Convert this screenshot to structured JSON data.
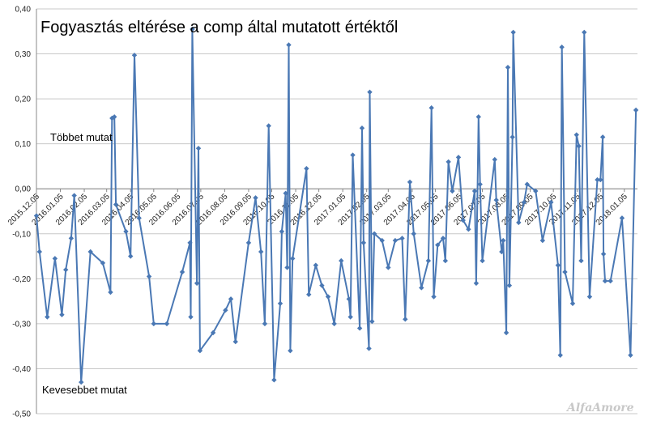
{
  "chart_data": {
    "type": "line",
    "title": "Fogyasztás eltérése a comp által mutatott értéktől",
    "annotations": [
      "Többet mutat",
      "Kevesebbet mutat"
    ],
    "watermark": "AlfaAmore",
    "color": "#4a78b4",
    "grid": true,
    "x": [
      "2015.12.05",
      "2015.12.09",
      "2015.12.19",
      "2015.12.29",
      "2016.01.07",
      "2016.01.12",
      "2016.01.19",
      "2016.01.23",
      "2016.02.01",
      "2016.02.13",
      "2016.02.29",
      "2016.03.10",
      "2016.03.12",
      "2016.03.15",
      "2016.03.17",
      "2016.03.30",
      "2016.04.05",
      "2016.04.10",
      "2016.04.16",
      "2016.04.29",
      "2016.05.05",
      "2016.05.22",
      "2016.06.11",
      "2016.06.21",
      "2016.06.22",
      "2016.06.24",
      "2016.06.30",
      "2016.07.02",
      "2016.07.04",
      "2016.07.21",
      "2016.08.06",
      "2016.08.13",
      "2016.08.19",
      "2016.09.05",
      "2016.09.14",
      "2016.09.21",
      "2016.09.26",
      "2016.10.01",
      "2016.10.08",
      "2016.10.16",
      "2016.10.18",
      "2016.10.23",
      "2016.10.25",
      "2016.10.27",
      "2016.10.29",
      "2016.11.01",
      "2016.11.19",
      "2016.11.22",
      "2016.12.01",
      "2016.12.09",
      "2016.12.17",
      "2016.12.25",
      "2017.01.03",
      "2017.01.13",
      "2017.01.15",
      "2017.01.18",
      "2017.01.27",
      "2017.01.30",
      "2017.02.01",
      "2017.02.08",
      "2017.02.09",
      "2017.02.12",
      "2017.02.15",
      "2017.02.25",
      "2017.03.05",
      "2017.03.14",
      "2017.03.23",
      "2017.03.27",
      "2017.04.02",
      "2017.04.07",
      "2017.04.17",
      "2017.04.26",
      "2017.04.30",
      "2017.05.03",
      "2017.05.08",
      "2017.05.15",
      "2017.05.18",
      "2017.05.22",
      "2017.05.27",
      "2017.06.04",
      "2017.06.10",
      "2017.06.17",
      "2017.06.25",
      "2017.06.27",
      "2017.06.30",
      "2017.07.02",
      "2017.07.05",
      "2017.07.21",
      "2017.07.23",
      "2017.07.30",
      "2017.08.01",
      "2017.08.05",
      "2017.08.07",
      "2017.08.09",
      "2017.08.13",
      "2017.08.14",
      "2017.08.21",
      "2017.08.28",
      "2017.09.01",
      "2017.09.12",
      "2017.09.21",
      "2017.10.02",
      "2017.10.11",
      "2017.10.14",
      "2017.10.16",
      "2017.10.20",
      "2017.10.30",
      "2017.11.04",
      "2017.11.07",
      "2017.11.10",
      "2017.11.14",
      "2017.11.21",
      "2017.12.01",
      "2017.12.05",
      "2017.12.08",
      "2017.12.09",
      "2017.12.11",
      "2017.12.18",
      "2018.01.02",
      "2018.01.13",
      "2018.01.20"
    ],
    "values": [
      -0.06,
      -0.14,
      -0.285,
      -0.155,
      -0.28,
      -0.18,
      -0.11,
      -0.015,
      -0.43,
      -0.14,
      -0.165,
      -0.23,
      0.157,
      0.16,
      -0.035,
      -0.095,
      -0.15,
      0.297,
      -0.065,
      -0.195,
      -0.3,
      -0.3,
      -0.185,
      -0.12,
      -0.285,
      0.355,
      -0.21,
      0.09,
      -0.36,
      -0.32,
      -0.27,
      -0.245,
      -0.34,
      -0.12,
      -0.02,
      -0.14,
      -0.3,
      0.14,
      -0.425,
      -0.255,
      -0.095,
      -0.01,
      -0.175,
      0.32,
      -0.36,
      -0.155,
      0.045,
      -0.235,
      -0.17,
      -0.215,
      -0.24,
      -0.3,
      -0.16,
      -0.245,
      -0.285,
      0.075,
      -0.31,
      0.135,
      -0.12,
      -0.355,
      0.215,
      -0.295,
      -0.1,
      -0.115,
      -0.175,
      -0.115,
      -0.11,
      -0.29,
      0.015,
      -0.1,
      -0.22,
      -0.16,
      0.18,
      -0.24,
      -0.125,
      -0.11,
      -0.16,
      0.06,
      -0.005,
      0.07,
      -0.07,
      -0.09,
      -0.005,
      -0.21,
      0.16,
      0.01,
      -0.16,
      0.065,
      -0.025,
      -0.14,
      -0.115,
      -0.32,
      0.27,
      -0.215,
      0.115,
      0.348,
      -0.075,
      -0.03,
      0.01,
      -0.005,
      -0.115,
      -0.03,
      -0.17,
      -0.37,
      0.315,
      -0.185,
      -0.255,
      0.12,
      0.095,
      -0.16,
      0.348,
      -0.24,
      0.02,
      0.02,
      0.115,
      -0.145,
      -0.205,
      -0.205,
      -0.065,
      -0.37,
      0.175
    ],
    "xlim": [
      "2015.12.05",
      "2018.01.22"
    ],
    "xticks": [
      "2015.12.05",
      "2016.01.05",
      "2016.02.05",
      "2016.03.05",
      "2016.04.05",
      "2016.05.05",
      "2016.06.05",
      "2016.07.05",
      "2016.08.05",
      "2016.09.05",
      "2016.10.05",
      "2016.11.05",
      "2016.12.05",
      "2017.01.05",
      "2017.02.05",
      "2017.03.05",
      "2017.04.05",
      "2017.05.05",
      "2017.06.05",
      "2017.07.05",
      "2017.08.05",
      "2017.09.05",
      "2017.10.05",
      "2017.11.05",
      "2017.12.05",
      "2018.01.05"
    ],
    "ylim": [
      -0.5,
      0.4
    ],
    "yticks": [
      {
        "value": -0.5,
        "label": "-0,50"
      },
      {
        "value": -0.4,
        "label": "-0,40"
      },
      {
        "value": -0.3,
        "label": "-0,30"
      },
      {
        "value": -0.2,
        "label": "-0,20"
      },
      {
        "value": -0.1,
        "label": "-0,10"
      },
      {
        "value": 0,
        "label": "0,00"
      },
      {
        "value": 0.1,
        "label": "0,10"
      },
      {
        "value": 0.2,
        "label": "0,20"
      },
      {
        "value": 0.3,
        "label": "0,30"
      },
      {
        "value": 0.4,
        "label": "0,40"
      }
    ]
  }
}
